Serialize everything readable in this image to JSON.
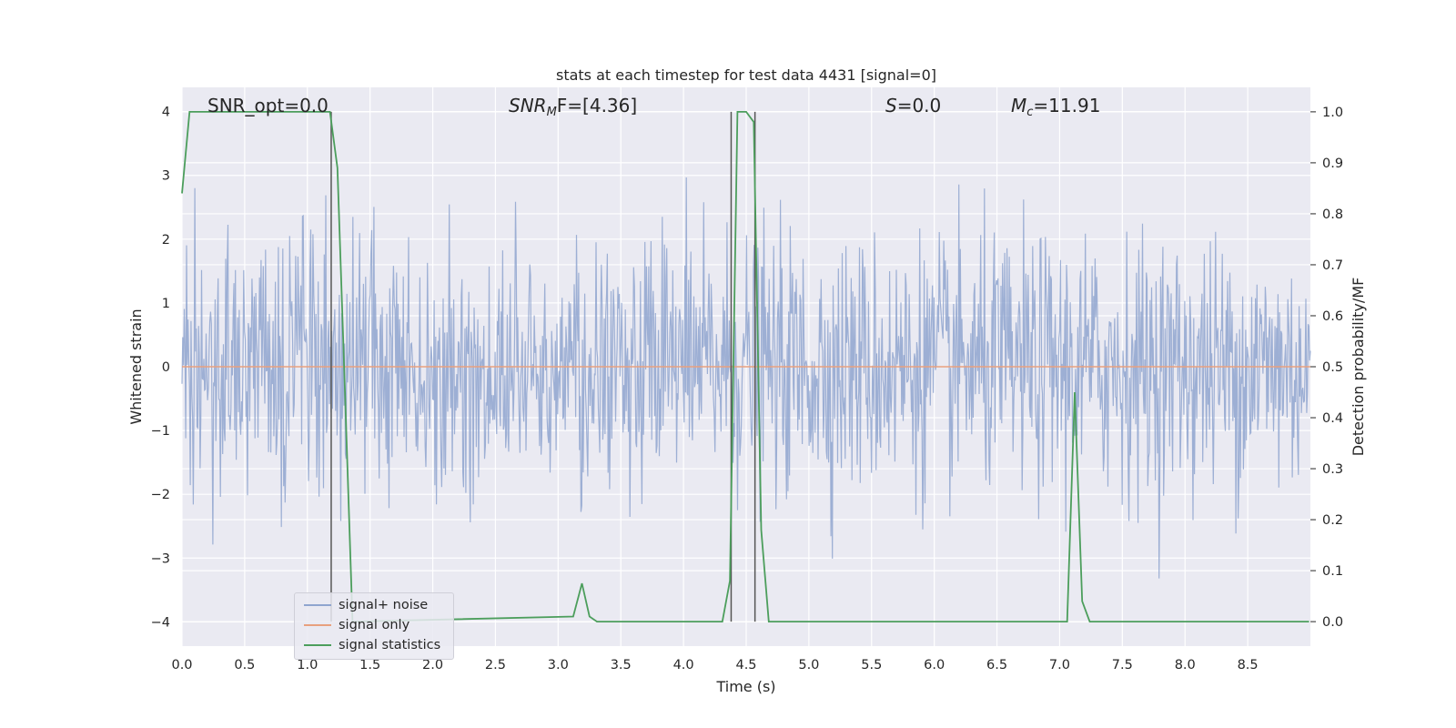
{
  "chart_data": {
    "type": "line",
    "title": "stats at each timestep for test data 4431 [signal=0]",
    "xlabel": "Time (s)",
    "ylabel": "Whitened strain",
    "y2label": "Detection probability/MF",
    "xlim": [
      0.0,
      9.0
    ],
    "ylim": [
      -4.38,
      4.38
    ],
    "y2lim": [
      -0.048,
      1.048
    ],
    "xticks": [
      "0.0",
      "0.5",
      "1.0",
      "1.5",
      "2.0",
      "2.5",
      "3.0",
      "3.5",
      "4.0",
      "4.5",
      "5.0",
      "5.5",
      "6.0",
      "6.5",
      "7.0",
      "7.5",
      "8.0",
      "8.5"
    ],
    "yticks": [
      "4",
      "3",
      "2",
      "1",
      "0",
      "−1",
      "−2",
      "−3",
      "−4"
    ],
    "y2ticks": [
      "1.0",
      "0.9",
      "0.8",
      "0.7",
      "0.6",
      "0.5",
      "0.4",
      "0.3",
      "0.2",
      "0.1",
      "0.0"
    ],
    "grid": true,
    "legend_position": "lower-left",
    "annotations": [
      {
        "text": "SNR_opt=0.0"
      },
      {
        "prefix": "SNR",
        "sub": "M",
        "suffix": "F=[4.36]"
      },
      {
        "prefix": "S",
        "sub": "",
        "suffix": "=0.0"
      },
      {
        "prefix": "M",
        "sub": "c",
        "suffix": "=11.91"
      }
    ],
    "markers_x": [
      1.19,
      4.38,
      4.57
    ],
    "series": [
      {
        "name": "signal+ noise",
        "color": "#8fa5cf",
        "axis": "left",
        "description": "whitened noise, approx within [-3.5, 3.7]"
      },
      {
        "name": "signal only",
        "color": "#e8a07e",
        "axis": "left",
        "x": [
          0.0,
          9.0
        ],
        "y": [
          0.0,
          0.0
        ]
      },
      {
        "name": "signal statistics",
        "color": "#4c9e5c",
        "axis": "right",
        "x": [
          0.0,
          0.06,
          0.12,
          0.18,
          1.18,
          1.24,
          1.3,
          1.36,
          3.12,
          3.19,
          3.25,
          3.31,
          4.31,
          4.37,
          4.43,
          4.5,
          4.56,
          4.62,
          4.68,
          7.06,
          7.12,
          7.18,
          7.24,
          8.99
        ],
        "y": [
          0.84,
          1.0,
          1.0,
          1.0,
          1.0,
          0.89,
          0.45,
          0.0,
          0.01,
          0.075,
          0.01,
          0.0,
          0.0,
          0.08,
          1.0,
          1.0,
          0.98,
          0.18,
          0.0,
          0.0,
          0.45,
          0.04,
          0.0,
          0.0
        ]
      }
    ]
  }
}
